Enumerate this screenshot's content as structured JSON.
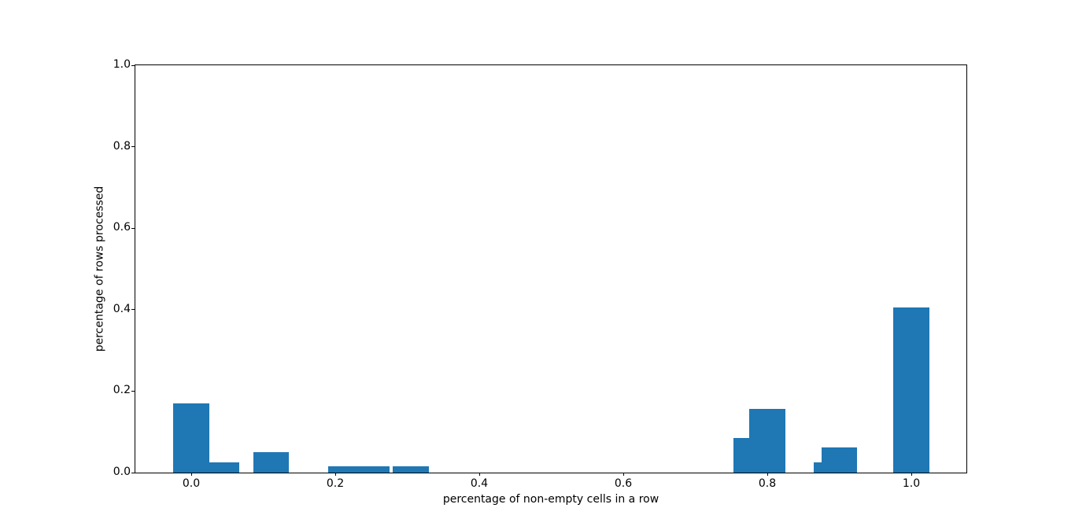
{
  "window": {
    "background": "#ffffff"
  },
  "chart_data": {
    "type": "bar",
    "title": "",
    "xlabel": "percentage of non-empty cells in a row",
    "ylabel": "percentage of rows processed",
    "xlim": [
      -0.0776,
      1.0765
    ],
    "ylim": [
      0,
      1
    ],
    "x_tick_values": [
      0.0,
      0.2,
      0.4,
      0.6,
      0.8,
      1.0
    ],
    "x_tick_labels": [
      "0.0",
      "0.2",
      "0.4",
      "0.6",
      "0.8",
      "1.0"
    ],
    "y_tick_values": [
      0.0,
      0.2,
      0.4,
      0.6,
      0.8,
      1.0
    ],
    "y_tick_labels": [
      "0.0",
      "0.2",
      "0.4",
      "0.6",
      "0.8",
      "1.0"
    ],
    "grid": false,
    "legend": "none",
    "bar_color": "#1f77b4",
    "bar_width": 0.05,
    "bars": [
      {
        "x": 0.0,
        "height": 0.17
      },
      {
        "x": 0.042,
        "height": 0.026
      },
      {
        "x": 0.111,
        "height": 0.051
      },
      {
        "x": 0.215,
        "height": 0.015
      },
      {
        "x": 0.25,
        "height": 0.015
      },
      {
        "x": 0.305,
        "height": 0.015
      },
      {
        "x": 0.778,
        "height": 0.085
      },
      {
        "x": 0.8,
        "height": 0.157
      },
      {
        "x": 0.889,
        "height": 0.026
      },
      {
        "x": 0.9,
        "height": 0.062
      },
      {
        "x": 1.0,
        "height": 0.406
      }
    ]
  }
}
